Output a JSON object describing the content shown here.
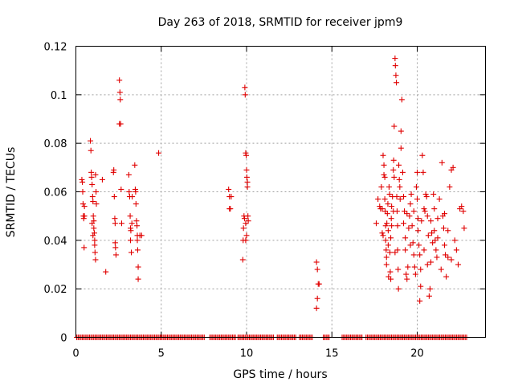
{
  "chart_data": {
    "type": "scatter",
    "title": "Day 263 of 2018, SRMTID for receiver jpm9",
    "xlabel": "GPS time / hours",
    "ylabel": "SRMTID / TECUs",
    "xlim": [
      0,
      24
    ],
    "ylim": [
      0,
      0.12
    ],
    "xticks": [
      0,
      5,
      10,
      15,
      20
    ],
    "xtick_labels": [
      "0",
      "5",
      "10",
      "15",
      "20"
    ],
    "yticks": [
      0,
      0.02,
      0.04,
      0.06,
      0.08,
      0.1,
      0.12
    ],
    "ytick_labels": [
      "0",
      "0.02",
      "0.04",
      "0.06",
      "0.08",
      "0.1",
      "0.12"
    ],
    "grid": true,
    "marker": "+",
    "color": "#e00000",
    "series": [
      {
        "name": "SRMTID",
        "points": [
          [
            0.35,
            0.065
          ],
          [
            0.38,
            0.064
          ],
          [
            0.4,
            0.06
          ],
          [
            0.42,
            0.055
          ],
          [
            0.44,
            0.05
          ],
          [
            0.46,
            0.049
          ],
          [
            0.48,
            0.037
          ],
          [
            0.5,
            0.054
          ],
          [
            0.5,
            0.05
          ],
          [
            0.85,
            0.081
          ],
          [
            0.88,
            0.077
          ],
          [
            0.9,
            0.068
          ],
          [
            0.92,
            0.066
          ],
          [
            0.95,
            0.063
          ],
          [
            0.98,
            0.058
          ],
          [
            1.0,
            0.056
          ],
          [
            1.02,
            0.05
          ],
          [
            1.05,
            0.048
          ],
          [
            1.05,
            0.045
          ],
          [
            1.08,
            0.043
          ],
          [
            1.1,
            0.04
          ],
          [
            1.1,
            0.038
          ],
          [
            1.12,
            0.035
          ],
          [
            1.15,
            0.032
          ],
          [
            0.95,
            0.047
          ],
          [
            1.0,
            0.042
          ],
          [
            1.18,
            0.06
          ],
          [
            1.2,
            0.055
          ],
          [
            1.15,
            0.067
          ],
          [
            1.55,
            0.065
          ],
          [
            1.75,
            0.027
          ],
          [
            2.2,
            0.068
          ],
          [
            2.22,
            0.069
          ],
          [
            2.25,
            0.058
          ],
          [
            2.28,
            0.049
          ],
          [
            2.3,
            0.047
          ],
          [
            2.3,
            0.039
          ],
          [
            2.32,
            0.037
          ],
          [
            2.35,
            0.034
          ],
          [
            2.55,
            0.106
          ],
          [
            2.58,
            0.101
          ],
          [
            2.6,
            0.098
          ],
          [
            2.55,
            0.088
          ],
          [
            2.62,
            0.088
          ],
          [
            2.65,
            0.061
          ],
          [
            2.68,
            0.047
          ],
          [
            3.1,
            0.067
          ],
          [
            3.12,
            0.06
          ],
          [
            3.15,
            0.058
          ],
          [
            3.18,
            0.05
          ],
          [
            3.2,
            0.045
          ],
          [
            3.2,
            0.04
          ],
          [
            3.22,
            0.044
          ],
          [
            3.25,
            0.035
          ],
          [
            3.28,
            0.047
          ],
          [
            3.3,
            0.058
          ],
          [
            3.45,
            0.071
          ],
          [
            3.48,
            0.061
          ],
          [
            3.5,
            0.06
          ],
          [
            3.52,
            0.055
          ],
          [
            3.55,
            0.048
          ],
          [
            3.58,
            0.046
          ],
          [
            3.6,
            0.042
          ],
          [
            3.6,
            0.04
          ],
          [
            3.62,
            0.036
          ],
          [
            3.65,
            0.029
          ],
          [
            3.65,
            0.024
          ],
          [
            3.75,
            0.042
          ],
          [
            3.85,
            0.042
          ],
          [
            4.85,
            0.076
          ],
          [
            8.95,
            0.061
          ],
          [
            9.0,
            0.058
          ],
          [
            9.1,
            0.058
          ],
          [
            9.0,
            0.053
          ],
          [
            9.05,
            0.053
          ],
          [
            9.78,
            0.032
          ],
          [
            9.8,
            0.04
          ],
          [
            9.82,
            0.045
          ],
          [
            9.85,
            0.05
          ],
          [
            9.88,
            0.049
          ],
          [
            9.9,
            0.103
          ],
          [
            9.92,
            0.1
          ],
          [
            9.95,
            0.076
          ],
          [
            9.98,
            0.075
          ],
          [
            10.0,
            0.069
          ],
          [
            10.02,
            0.066
          ],
          [
            10.05,
            0.064
          ],
          [
            10.05,
            0.062
          ],
          [
            10.08,
            0.05
          ],
          [
            10.1,
            0.048
          ],
          [
            9.95,
            0.04
          ],
          [
            10.0,
            0.042
          ],
          [
            9.95,
            0.047
          ],
          [
            14.1,
            0.031
          ],
          [
            14.15,
            0.028
          ],
          [
            14.2,
            0.022
          ],
          [
            14.25,
            0.022
          ],
          [
            14.1,
            0.012
          ],
          [
            14.15,
            0.016
          ],
          [
            17.6,
            0.047
          ],
          [
            17.7,
            0.057
          ],
          [
            17.8,
            0.054
          ],
          [
            17.85,
            0.053
          ],
          [
            17.9,
            0.062
          ],
          [
            17.95,
            0.053
          ],
          [
            17.95,
            0.043
          ],
          [
            18.0,
            0.042
          ],
          [
            18.0,
            0.075
          ],
          [
            18.05,
            0.071
          ],
          [
            18.05,
            0.067
          ],
          [
            18.1,
            0.066
          ],
          [
            18.1,
            0.057
          ],
          [
            18.12,
            0.052
          ],
          [
            18.15,
            0.046
          ],
          [
            18.15,
            0.04
          ],
          [
            18.18,
            0.036
          ],
          [
            18.2,
            0.033
          ],
          [
            18.2,
            0.03
          ],
          [
            18.22,
            0.047
          ],
          [
            18.25,
            0.051
          ],
          [
            18.28,
            0.055
          ],
          [
            18.3,
            0.044
          ],
          [
            18.3,
            0.038
          ],
          [
            18.32,
            0.025
          ],
          [
            18.35,
            0.062
          ],
          [
            18.38,
            0.059
          ],
          [
            18.4,
            0.035
          ],
          [
            18.42,
            0.027
          ],
          [
            18.45,
            0.024
          ],
          [
            18.45,
            0.041
          ],
          [
            18.48,
            0.049
          ],
          [
            18.5,
            0.054
          ],
          [
            18.55,
            0.058
          ],
          [
            18.6,
            0.069
          ],
          [
            18.62,
            0.073
          ],
          [
            18.65,
            0.066
          ],
          [
            18.65,
            0.087
          ],
          [
            18.7,
            0.115
          ],
          [
            18.72,
            0.112
          ],
          [
            18.75,
            0.108
          ],
          [
            18.78,
            0.105
          ],
          [
            18.8,
            0.058
          ],
          [
            18.82,
            0.052
          ],
          [
            18.85,
            0.046
          ],
          [
            18.85,
            0.036
          ],
          [
            18.88,
            0.028
          ],
          [
            18.9,
            0.02
          ],
          [
            18.92,
            0.071
          ],
          [
            18.95,
            0.065
          ],
          [
            18.98,
            0.062
          ],
          [
            19.0,
            0.057
          ],
          [
            19.05,
            0.085
          ],
          [
            19.05,
            0.078
          ],
          [
            19.1,
            0.098
          ],
          [
            19.15,
            0.068
          ],
          [
            19.2,
            0.058
          ],
          [
            19.25,
            0.052
          ],
          [
            19.3,
            0.041
          ],
          [
            19.3,
            0.036
          ],
          [
            19.35,
            0.026
          ],
          [
            19.4,
            0.024
          ],
          [
            19.45,
            0.029
          ],
          [
            19.5,
            0.045
          ],
          [
            19.55,
            0.05
          ],
          [
            19.6,
            0.055
          ],
          [
            19.65,
            0.059
          ],
          [
            19.7,
            0.046
          ],
          [
            19.75,
            0.039
          ],
          [
            19.8,
            0.034
          ],
          [
            19.85,
            0.029
          ],
          [
            19.9,
            0.026
          ],
          [
            19.95,
            0.062
          ],
          [
            20.0,
            0.068
          ],
          [
            20.05,
            0.049
          ],
          [
            20.05,
            0.044
          ],
          [
            20.1,
            0.038
          ],
          [
            20.15,
            0.034
          ],
          [
            20.15,
            0.015
          ],
          [
            20.2,
            0.021
          ],
          [
            20.25,
            0.048
          ],
          [
            20.3,
            0.075
          ],
          [
            20.35,
            0.068
          ],
          [
            20.4,
            0.053
          ],
          [
            20.45,
            0.052
          ],
          [
            20.5,
            0.059
          ],
          [
            20.55,
            0.058
          ],
          [
            20.6,
            0.05
          ],
          [
            20.65,
            0.042
          ],
          [
            20.7,
            0.017
          ],
          [
            20.75,
            0.02
          ],
          [
            20.8,
            0.048
          ],
          [
            20.85,
            0.043
          ],
          [
            20.9,
            0.039
          ],
          [
            20.95,
            0.059
          ],
          [
            21.0,
            0.044
          ],
          [
            21.05,
            0.04
          ],
          [
            21.1,
            0.036
          ],
          [
            21.15,
            0.033
          ],
          [
            21.2,
            0.049
          ],
          [
            21.3,
            0.057
          ],
          [
            21.45,
            0.072
          ],
          [
            21.5,
            0.05
          ],
          [
            21.55,
            0.045
          ],
          [
            21.6,
            0.038
          ],
          [
            21.65,
            0.034
          ],
          [
            21.7,
            0.025
          ],
          [
            21.8,
            0.033
          ],
          [
            21.9,
            0.062
          ],
          [
            22.0,
            0.069
          ],
          [
            22.1,
            0.07
          ],
          [
            22.2,
            0.04
          ],
          [
            22.3,
            0.036
          ],
          [
            22.4,
            0.03
          ],
          [
            22.5,
            0.053
          ],
          [
            22.6,
            0.054
          ],
          [
            22.7,
            0.052
          ],
          [
            22.75,
            0.045
          ],
          [
            18.5,
            0.046
          ],
          [
            18.6,
            0.052
          ],
          [
            18.7,
            0.035
          ],
          [
            19.2,
            0.047
          ],
          [
            19.4,
            0.051
          ],
          [
            19.6,
            0.038
          ],
          [
            19.8,
            0.052
          ],
          [
            20.0,
            0.057
          ],
          [
            20.2,
            0.028
          ],
          [
            20.4,
            0.036
          ],
          [
            20.6,
            0.03
          ],
          [
            20.8,
            0.031
          ],
          [
            21.0,
            0.053
          ],
          [
            21.2,
            0.041
          ],
          [
            21.4,
            0.028
          ],
          [
            21.6,
            0.051
          ],
          [
            21.8,
            0.044
          ],
          [
            22.0,
            0.032
          ]
        ],
        "zero_runs": [
          [
            0.05,
            7.6
          ],
          [
            7.85,
            9.4
          ],
          [
            9.5,
            11.6
          ],
          [
            11.8,
            12.9
          ],
          [
            13.1,
            13.9
          ],
          [
            14.5,
            14.9
          ],
          [
            15.6,
            16.8
          ],
          [
            17.0,
            22.9
          ]
        ]
      }
    ]
  }
}
